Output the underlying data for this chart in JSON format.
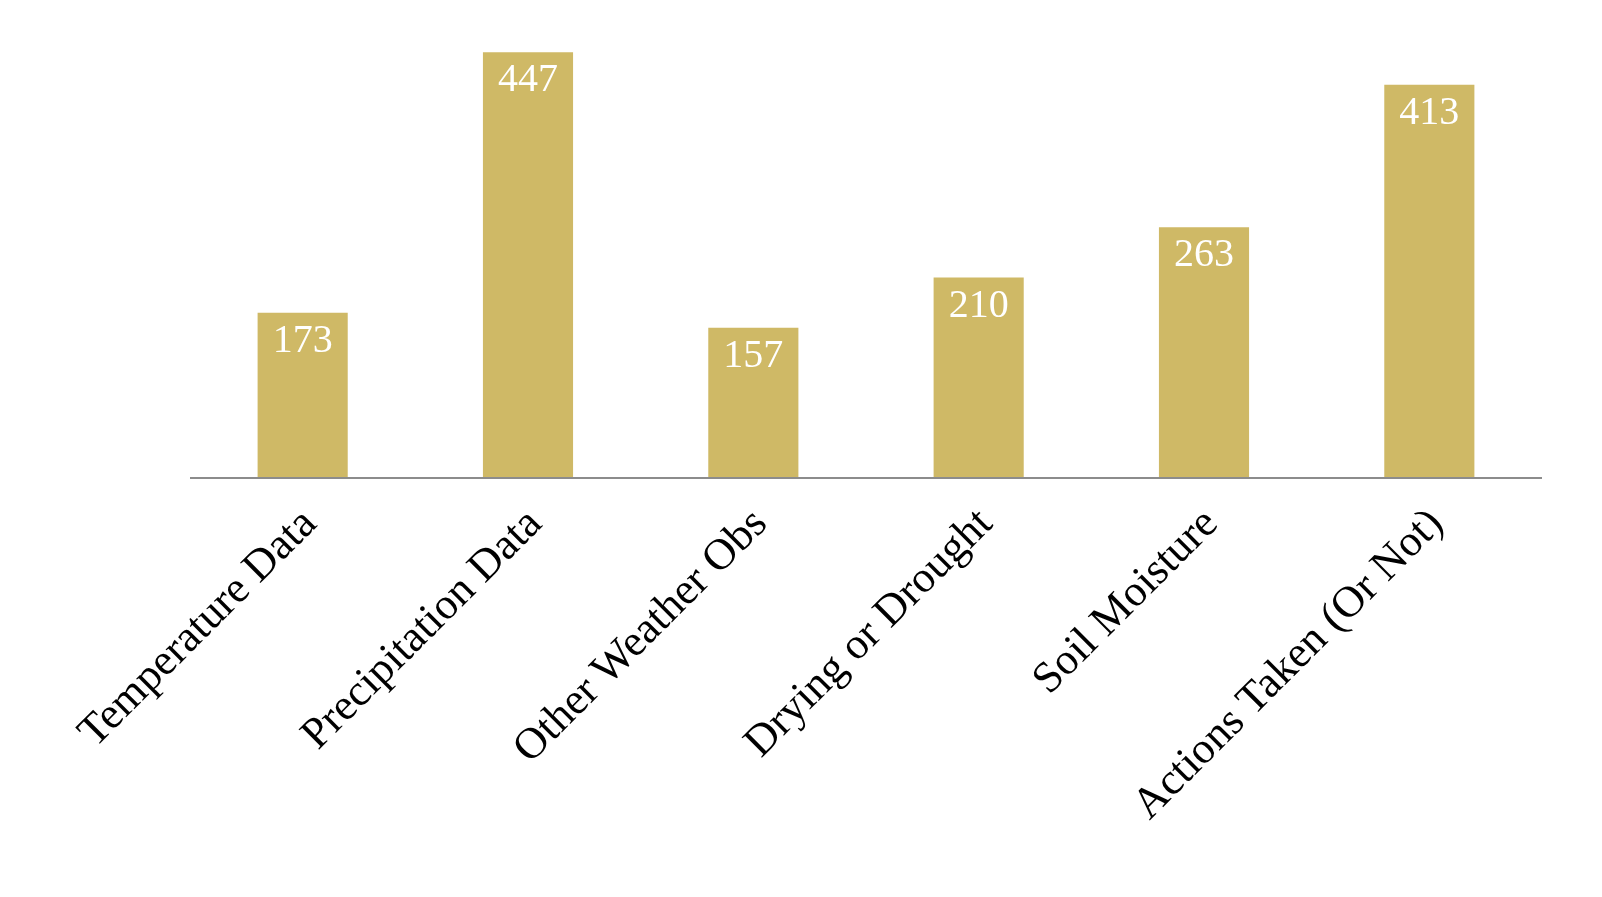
{
  "chart_data": {
    "type": "bar",
    "categories": [
      "Temperature Data",
      "Precipitation Data",
      "Other Weather Obs",
      "Drying or Drought",
      "Soil Moisture",
      "Actions Taken (Or Not)"
    ],
    "values": [
      173,
      447,
      157,
      210,
      263,
      413
    ],
    "color": "#cfb966",
    "data_labels": true,
    "tick_labels": "x"
  }
}
